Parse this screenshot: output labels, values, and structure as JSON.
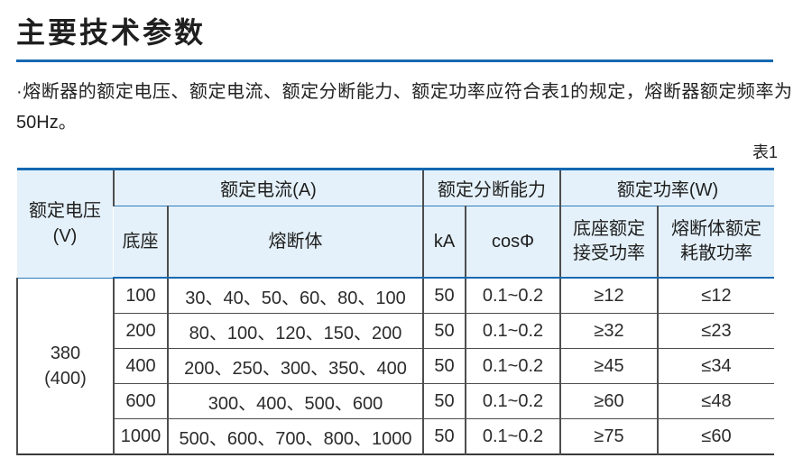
{
  "title": "主要技术参数",
  "intro": "·熔断器的额定电压、额定电流、额定分断能力、额定功率应符合表1的规定，熔断器额定频率为50Hz。",
  "table_label": "表1",
  "colors": {
    "accent_blue": "#1268b1",
    "header_bg": "#e4f1fa",
    "grid_dark": "#4d4d4d"
  },
  "table": {
    "header": {
      "voltage": "额定电压\n(V)",
      "current_group": "额定电流(A)",
      "base": "底座",
      "fuse": "熔断体",
      "breaking_group": "额定分断能力",
      "ka": "kA",
      "cosphi": "cosΦ",
      "power_group": "额定功率(W)",
      "base_power": "底座额定\n接受功率",
      "fuse_power": "熔断体额定\n耗散功率"
    },
    "voltage_value": "380\n(400)",
    "rows": [
      {
        "base": "100",
        "fuse": "30、40、50、60、80、100",
        "ka": "50",
        "cosphi": "0.1~0.2",
        "accept_power": "≥12",
        "dissipate_power": "≤12"
      },
      {
        "base": "200",
        "fuse": "80、100、120、150、200",
        "ka": "50",
        "cosphi": "0.1~0.2",
        "accept_power": "≥32",
        "dissipate_power": "≤23"
      },
      {
        "base": "400",
        "fuse": "200、250、300、350、400",
        "ka": "50",
        "cosphi": "0.1~0.2",
        "accept_power": "≥45",
        "dissipate_power": "≤34"
      },
      {
        "base": "600",
        "fuse": "300、400、500、600",
        "ka": "50",
        "cosphi": "0.1~0.2",
        "accept_power": "≥60",
        "dissipate_power": "≤48"
      },
      {
        "base": "1000",
        "fuse": "500、600、700、800、1000",
        "ka": "50",
        "cosphi": "0.1~0.2",
        "accept_power": "≥75",
        "dissipate_power": "≤60"
      }
    ]
  }
}
